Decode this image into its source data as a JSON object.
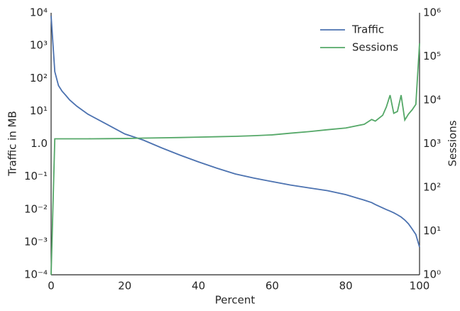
{
  "chart_data": {
    "type": "line",
    "xlabel": "Percent",
    "ylabel": "Traffic in MB",
    "y2label": "Sessions",
    "x": [
      0,
      1,
      2,
      3,
      4,
      5,
      7,
      10,
      15,
      20,
      25,
      30,
      35,
      40,
      45,
      50,
      55,
      60,
      65,
      70,
      75,
      80,
      85,
      87,
      88,
      90,
      91,
      92,
      93,
      94,
      95,
      96,
      97,
      98,
      99,
      100
    ],
    "series": [
      {
        "name": "Traffic",
        "color": "#4c72b0",
        "axis": "y",
        "values": [
          8000,
          160,
          60,
          40,
          30,
          22,
          14,
          8,
          4,
          2,
          1.3,
          0.75,
          0.45,
          0.28,
          0.18,
          0.12,
          0.09,
          0.07,
          0.055,
          0.045,
          0.037,
          0.028,
          0.019,
          0.016,
          0.014,
          0.011,
          0.0098,
          0.0088,
          0.0078,
          0.0068,
          0.0058,
          0.0047,
          0.0036,
          0.0025,
          0.0017,
          0.0007
        ]
      },
      {
        "name": "Sessions",
        "color": "#55a868",
        "axis": "y2",
        "values": [
          1,
          1300,
          1300,
          1300,
          1300,
          1300,
          1300,
          1300,
          1310,
          1320,
          1350,
          1370,
          1390,
          1420,
          1450,
          1480,
          1530,
          1600,
          1750,
          1900,
          2100,
          2300,
          2800,
          3600,
          3300,
          4500,
          7000,
          13000,
          5000,
          5500,
          13000,
          3500,
          4800,
          6000,
          8000,
          200000
        ]
      }
    ],
    "xlim": [
      0,
      100
    ],
    "xticks": [
      0,
      20,
      40,
      60,
      80,
      100
    ],
    "ylim": [
      0.0001,
      10000
    ],
    "yscale": "log",
    "yticks": [
      {
        "value": 0.0001,
        "label": "10⁻⁴"
      },
      {
        "value": 0.001,
        "label": "10⁻³"
      },
      {
        "value": 0.01,
        "label": "10⁻²"
      },
      {
        "value": 0.1,
        "label": "10⁻¹"
      },
      {
        "value": 1,
        "label": "1.0"
      },
      {
        "value": 10,
        "label": "10¹"
      },
      {
        "value": 100,
        "label": "10²"
      },
      {
        "value": 1000,
        "label": "10³"
      },
      {
        "value": 10000,
        "label": "10⁴"
      }
    ],
    "y2lim": [
      1,
      1000000
    ],
    "y2scale": "log",
    "y2ticks": [
      {
        "value": 1,
        "label": "10⁰"
      },
      {
        "value": 10,
        "label": "10¹"
      },
      {
        "value": 100,
        "label": "10²"
      },
      {
        "value": 1000,
        "label": "10³"
      },
      {
        "value": 10000,
        "label": "10⁴"
      },
      {
        "value": 100000,
        "label": "10⁵"
      },
      {
        "value": 1000000,
        "label": "10⁶"
      }
    ],
    "legend": "upper right",
    "grid": false
  }
}
